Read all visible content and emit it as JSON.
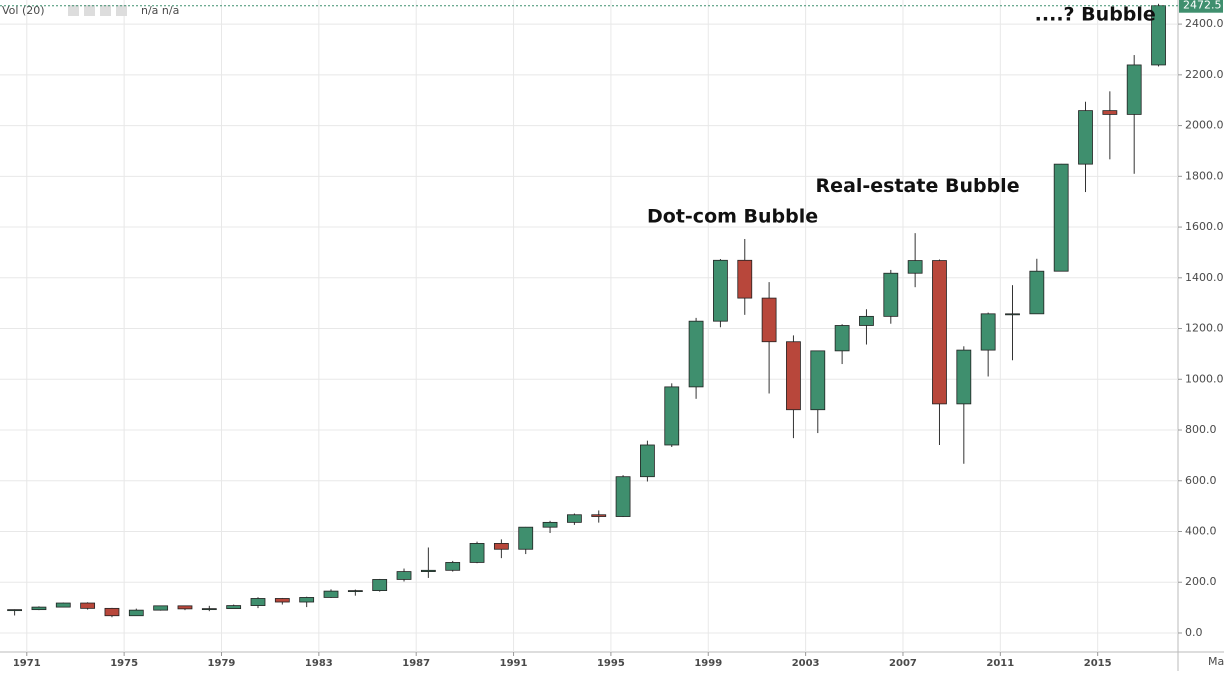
{
  "chart_data": {
    "type": "candlestick",
    "indicator_label": "Vol (20)",
    "indicator_values": "n/a n/a",
    "x_axis_end_label": "Ma",
    "annotations": [
      {
        "text": "Dot-com Bubble",
        "x": 2000,
        "y": 1640
      },
      {
        "text": "Real-estate Bubble",
        "x": 2007.6,
        "y": 1760
      },
      {
        "text": "....? Bubble",
        "x": 2014.9,
        "y": 2435
      }
    ],
    "up_color": "#3f8f6e",
    "down_color": "#b8473b",
    "grid": true,
    "x": [
      1970,
      1971,
      1972,
      1973,
      1974,
      1975,
      1976,
      1977,
      1978,
      1979,
      1980,
      1981,
      1982,
      1983,
      1984,
      1985,
      1986,
      1987,
      1988,
      1989,
      1990,
      1991,
      1992,
      1993,
      1994,
      1995,
      1996,
      1997,
      1998,
      1999,
      2000,
      2001,
      2002,
      2003,
      2004,
      2005,
      2006,
      2007,
      2008,
      2009,
      2010,
      2011,
      2012,
      2013,
      2014,
      2015,
      2016,
      2017
    ],
    "open": [
      92,
      92,
      102,
      118,
      97,
      68,
      90,
      107,
      95,
      96,
      108,
      136,
      122,
      140,
      165,
      167,
      211,
      242,
      247,
      278,
      353,
      330,
      417,
      436,
      466,
      459,
      616,
      741,
      970,
      1229,
      1469,
      1320,
      1148,
      880,
      1112,
      1212,
      1248,
      1418,
      1468,
      903,
      1115,
      1258,
      1258,
      1426,
      1848,
      2059,
      2044,
      2239
    ],
    "high": [
      93,
      105,
      120,
      121,
      99,
      96,
      108,
      107,
      107,
      112,
      141,
      138,
      143,
      172,
      171,
      213,
      254,
      337,
      284,
      360,
      369,
      418,
      442,
      471,
      483,
      622,
      758,
      984,
      1242,
      1474,
      1553,
      1383,
      1173,
      1112,
      1217,
      1276,
      1431,
      1576,
      1472,
      1130,
      1263,
      1371,
      1475,
      1849,
      2094,
      2135,
      2278,
      2480
    ],
    "low": [
      69,
      90,
      101,
      92,
      62,
      70,
      88,
      90,
      86,
      96,
      98,
      112,
      102,
      138,
      147,
      163,
      203,
      217,
      242,
      275,
      295,
      311,
      394,
      426,
      435,
      457,
      597,
      733,
      923,
      1205,
      1254,
      944,
      768,
      788,
      1060,
      1137,
      1219,
      1363,
      741,
      667,
      1011,
      1075,
      1259,
      1426,
      1738,
      1867,
      1810,
      2233
    ],
    "close": [
      92,
      102,
      118,
      97,
      68,
      90,
      107,
      95,
      96,
      108,
      136,
      122,
      140,
      165,
      167,
      211,
      242,
      247,
      278,
      353,
      330,
      417,
      436,
      466,
      459,
      616,
      741,
      970,
      1229,
      1469,
      1320,
      1148,
      880,
      1112,
      1212,
      1248,
      1418,
      1468,
      903,
      1115,
      1258,
      1258,
      1426,
      1848,
      2059,
      2044,
      2239,
      2472.5
    ],
    "xlim": [
      1969.9,
      2018.3
    ],
    "ylim": [
      -75,
      2495
    ],
    "xticks": [
      1971,
      1975,
      1979,
      1983,
      1987,
      1991,
      1995,
      1999,
      2003,
      2007,
      2011,
      2015
    ],
    "yticks": [
      {
        "value": 0,
        "label": "0.0"
      },
      {
        "value": 200,
        "label": "200.0"
      },
      {
        "value": 400,
        "label": "400.0"
      },
      {
        "value": 600,
        "label": "600.0"
      },
      {
        "value": 800,
        "label": "800.0"
      },
      {
        "value": 1000,
        "label": "1000.0"
      },
      {
        "value": 1200,
        "label": "1200.0"
      },
      {
        "value": 1400,
        "label": "1400.0"
      },
      {
        "value": 1600,
        "label": "1600.0"
      },
      {
        "value": 1800,
        "label": "1800.0"
      },
      {
        "value": 2000,
        "label": "2000.0"
      },
      {
        "value": 2200,
        "label": "2200.0"
      },
      {
        "value": 2400,
        "label": "2400.0"
      }
    ]
  }
}
